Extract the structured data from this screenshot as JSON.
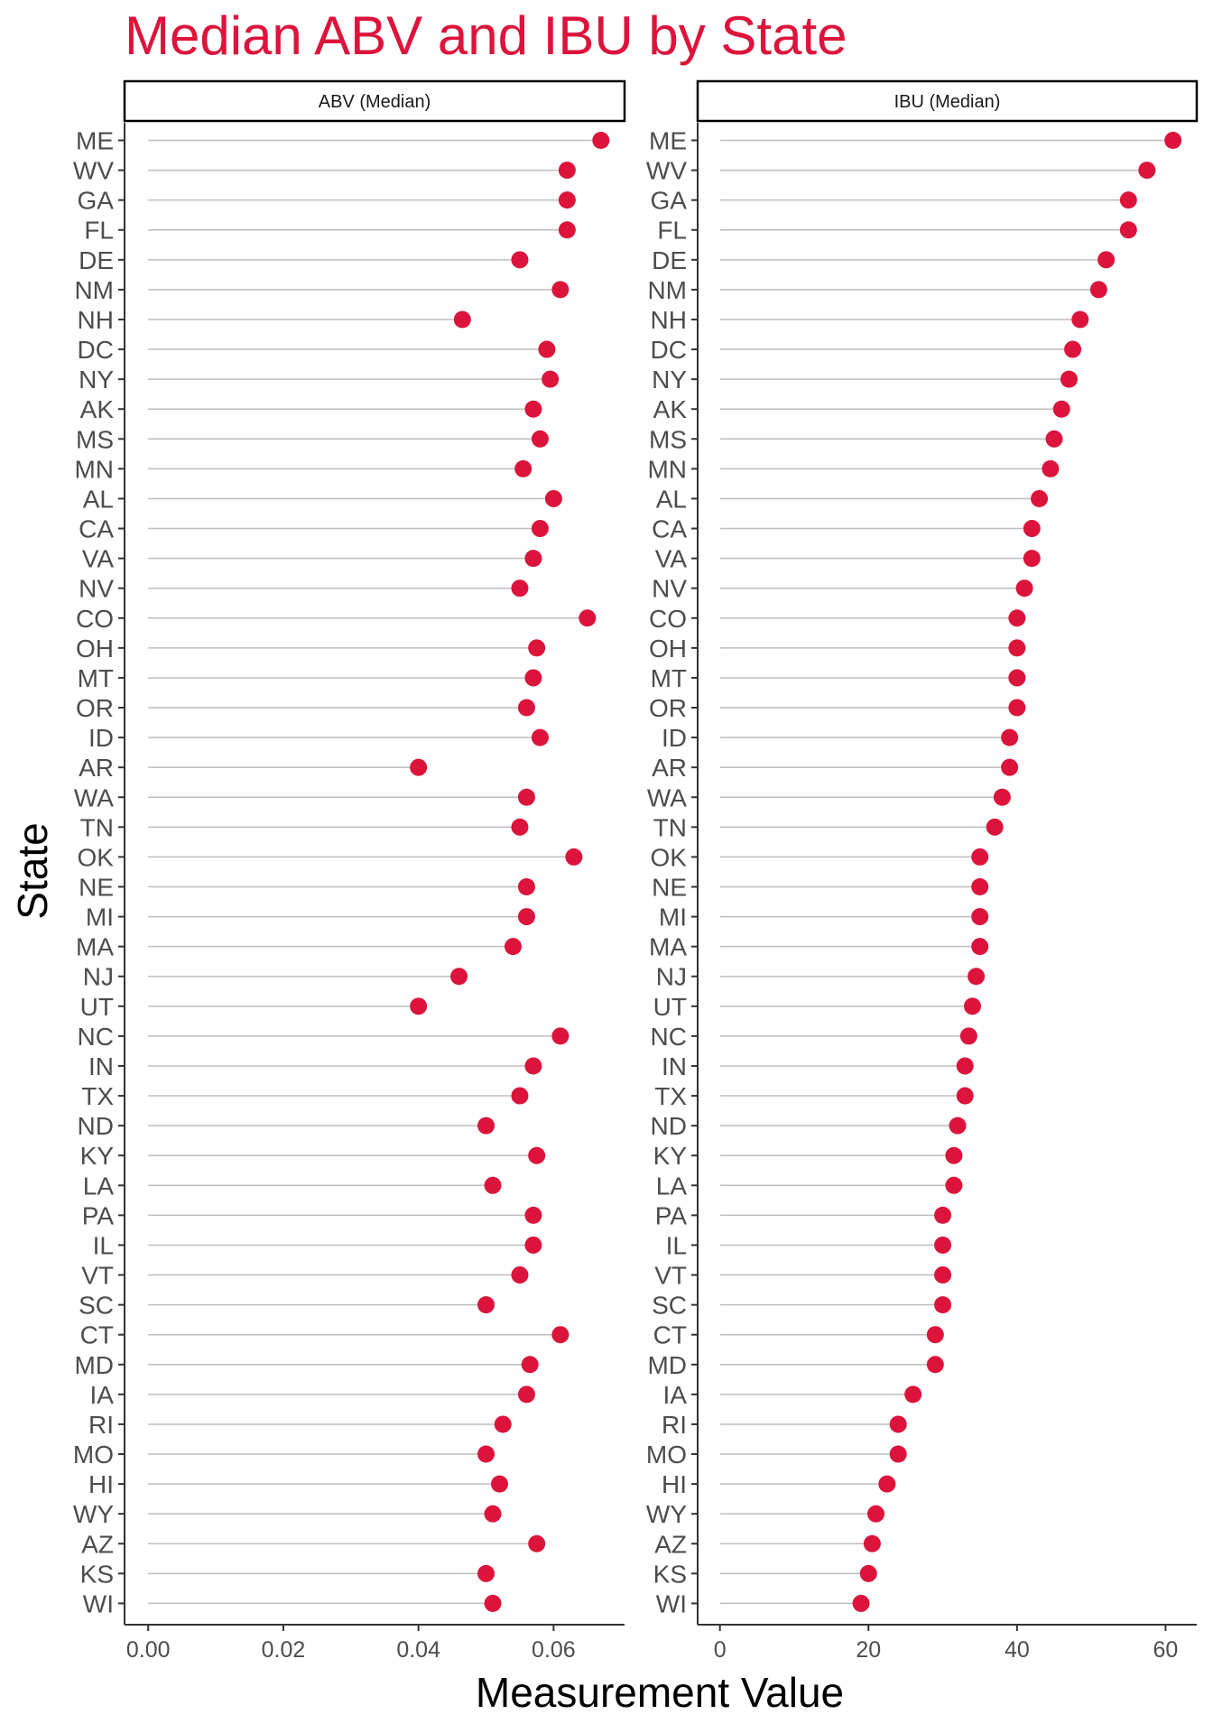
{
  "chart_data": {
    "type": "scatter",
    "style": "lollipop",
    "title": "Median ABV and IBU by State",
    "xlabel": "Measurement Value",
    "ylabel": "State",
    "grid": false,
    "legend": "none",
    "categories": [
      "ME",
      "WV",
      "GA",
      "FL",
      "DE",
      "NM",
      "NH",
      "DC",
      "NY",
      "AK",
      "MS",
      "MN",
      "AL",
      "CA",
      "VA",
      "NV",
      "CO",
      "OH",
      "MT",
      "OR",
      "ID",
      "AR",
      "WA",
      "TN",
      "OK",
      "NE",
      "MI",
      "MA",
      "NJ",
      "UT",
      "NC",
      "IN",
      "TX",
      "ND",
      "KY",
      "LA",
      "PA",
      "IL",
      "VT",
      "SC",
      "CT",
      "MD",
      "IA",
      "RI",
      "MO",
      "HI",
      "WY",
      "AZ",
      "KS",
      "WI"
    ],
    "panels": [
      {
        "name": "ABV (Median)",
        "xlim": [
          -0.0035,
          0.0705
        ],
        "xticks": [
          0,
          0.02,
          0.04,
          0.06
        ],
        "xtick_labels": [
          "0.00",
          "0.02",
          "0.04",
          "0.06"
        ],
        "values": [
          0.067,
          0.062,
          0.062,
          0.062,
          0.055,
          0.061,
          0.0465,
          0.059,
          0.0595,
          0.057,
          0.058,
          0.0555,
          0.06,
          0.058,
          0.057,
          0.055,
          0.065,
          0.0575,
          0.057,
          0.056,
          0.058,
          0.04,
          0.056,
          0.055,
          0.063,
          0.056,
          0.056,
          0.054,
          0.046,
          0.04,
          0.061,
          0.057,
          0.055,
          0.05,
          0.0575,
          0.051,
          0.057,
          0.057,
          0.055,
          0.05,
          0.061,
          0.0565,
          0.056,
          0.0525,
          0.05,
          0.052,
          0.051,
          0.0575,
          0.05,
          0.051
        ]
      },
      {
        "name": "IBU (Median)",
        "xlim": [
          -3,
          64.2
        ],
        "xticks": [
          0,
          20,
          40,
          60
        ],
        "xtick_labels": [
          "0",
          "20",
          "40",
          "60"
        ],
        "values": [
          61,
          57.5,
          55,
          55,
          52,
          51,
          48.5,
          47.5,
          47,
          46,
          45,
          44.5,
          43,
          42,
          42,
          41,
          40,
          40,
          40,
          40,
          39,
          39,
          38,
          37,
          35,
          35,
          35,
          35,
          34.5,
          34,
          33.5,
          33,
          33,
          32,
          31.5,
          31.5,
          30,
          30,
          30,
          30,
          29,
          29,
          26,
          24,
          24,
          22.5,
          21,
          20.5,
          20,
          19
        ]
      }
    ],
    "colors": {
      "point": "#dc143c",
      "stem": "#bebebe",
      "title": "#dc143c",
      "axis": "#333333"
    }
  }
}
